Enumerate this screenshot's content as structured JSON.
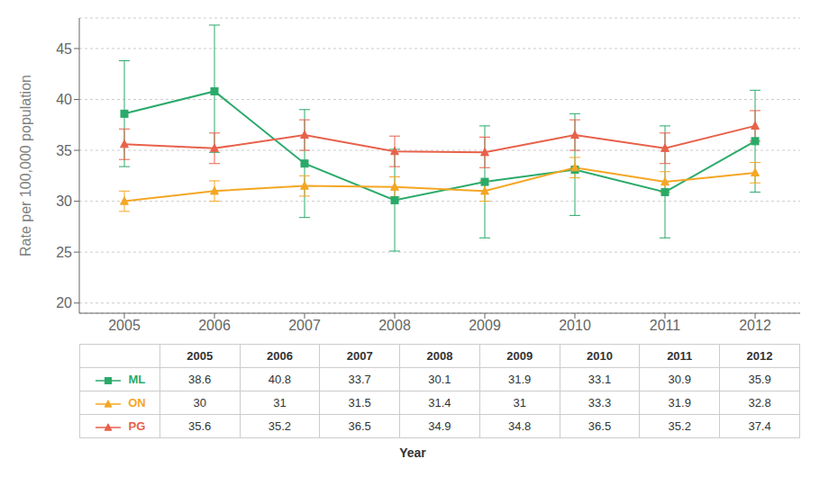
{
  "chart_data": {
    "type": "line",
    "xlabel": "Year",
    "ylabel": "Rate per 100,000 population",
    "x": [
      2005,
      2006,
      2007,
      2008,
      2009,
      2010,
      2011,
      2012
    ],
    "xlim": [
      2004.5,
      2012.5
    ],
    "xticks": [
      2005,
      2006,
      2007,
      2008,
      2009,
      2010,
      2011,
      2012
    ],
    "ylim": [
      19,
      48
    ],
    "yticks": [
      20,
      25,
      30,
      35,
      40,
      45
    ],
    "grid": true,
    "series": [
      {
        "name": "ML",
        "color": "#2aaa6a",
        "marker": "square",
        "line_style": "solid",
        "values": [
          38.6,
          40.8,
          33.7,
          30.1,
          31.9,
          33.1,
          30.9,
          35.9
        ],
        "error_low": [
          5.2,
          6.0,
          5.3,
          5.0,
          5.5,
          4.5,
          4.5,
          5.0
        ],
        "error_high": [
          5.2,
          6.5,
          5.3,
          5.0,
          5.5,
          5.5,
          6.5,
          5.0
        ]
      },
      {
        "name": "ON",
        "color": "#f5a623",
        "marker": "triangle",
        "line_style": "solid",
        "values": [
          30,
          31,
          31.5,
          31.4,
          31,
          33.3,
          31.9,
          32.8
        ],
        "error_low": [
          1.0,
          1.0,
          1.0,
          1.0,
          1.0,
          1.0,
          1.0,
          1.0
        ],
        "error_high": [
          1.0,
          1.0,
          1.0,
          1.0,
          1.0,
          1.0,
          1.0,
          1.0
        ]
      },
      {
        "name": "PG",
        "color": "#e8614a",
        "marker": "triangle",
        "line_style": "solid",
        "values": [
          35.6,
          35.2,
          36.5,
          34.9,
          34.8,
          36.5,
          35.2,
          37.4
        ],
        "error_low": [
          1.5,
          1.5,
          1.5,
          1.5,
          1.5,
          1.5,
          1.5,
          1.5
        ],
        "error_high": [
          1.5,
          1.5,
          1.5,
          1.5,
          1.5,
          1.5,
          1.5,
          1.5
        ]
      }
    ]
  }
}
